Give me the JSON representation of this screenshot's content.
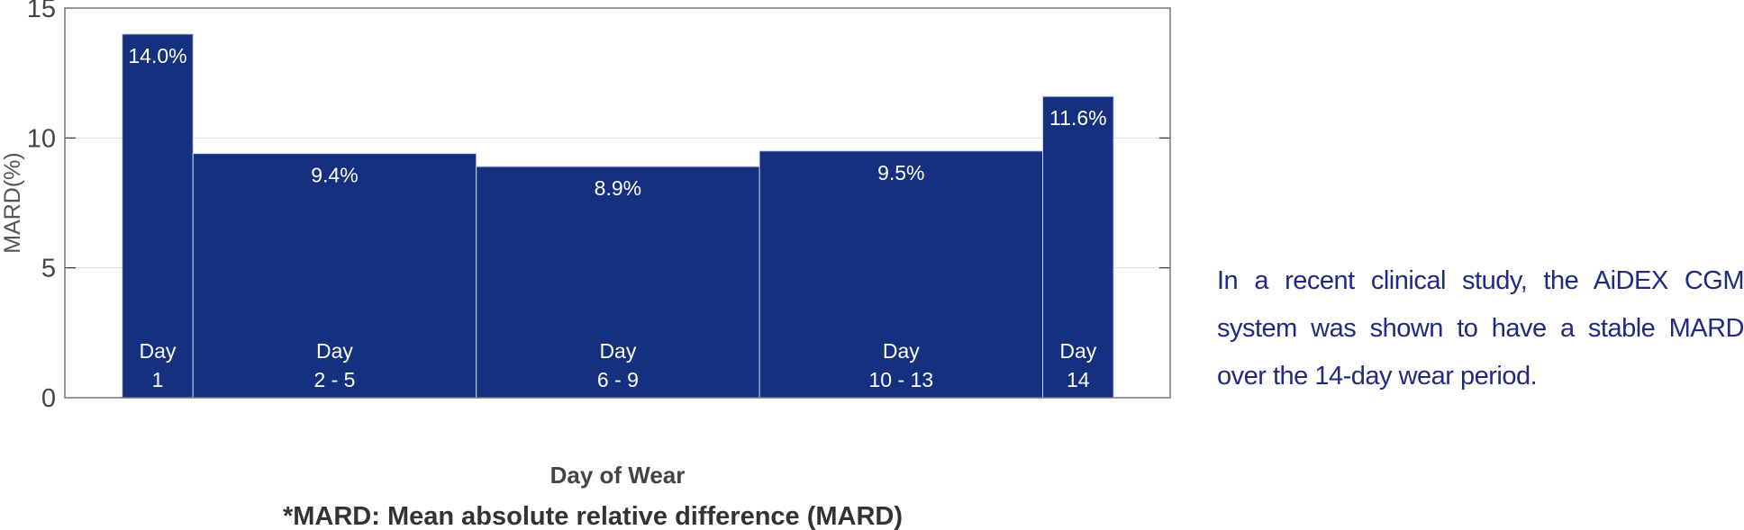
{
  "chart_data": {
    "type": "bar",
    "ylabel": "MARD(%)",
    "xlabel": "Day of Wear",
    "footnote": "*MARD: Mean absolute relative difference (MARD)",
    "ylim": [
      0,
      15
    ],
    "yticks": [
      "0",
      "5",
      "10",
      "15"
    ],
    "grid": true,
    "bar_color": "#15307e",
    "categories": [
      {
        "line1": "Day",
        "line2": "1",
        "start_day": 1,
        "end_day": 1
      },
      {
        "line1": "Day",
        "line2": "2 - 5",
        "start_day": 2,
        "end_day": 5
      },
      {
        "line1": "Day",
        "line2": "6 - 9",
        "start_day": 6,
        "end_day": 9
      },
      {
        "line1": "Day",
        "line2": "10 - 13",
        "start_day": 10,
        "end_day": 13
      },
      {
        "line1": "Day",
        "line2": "14",
        "start_day": 14,
        "end_day": 14
      }
    ],
    "values": [
      14.0,
      9.4,
      8.9,
      9.5,
      11.6
    ],
    "value_labels": [
      "14.0%",
      "9.4%",
      "8.9%",
      "9.5%",
      "11.6%"
    ]
  },
  "description": "In a recent clinical study, the AiDEX CGM system was shown to have a stable MARD over the 14-day wear period."
}
